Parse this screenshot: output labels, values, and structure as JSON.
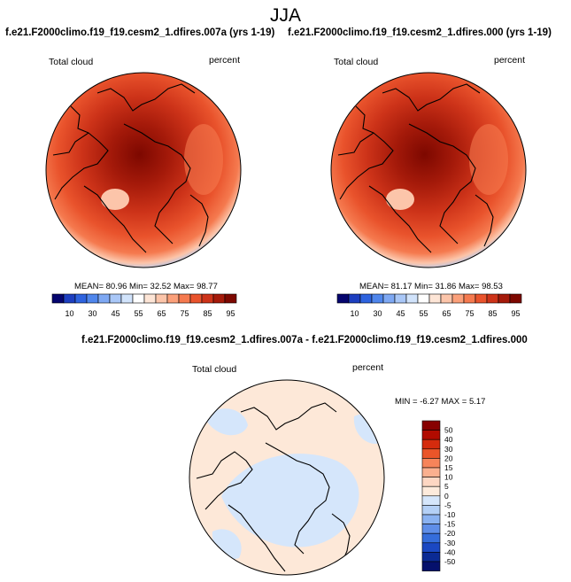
{
  "title": "JJA",
  "panels": [
    {
      "case": "f.e21.F2000climo.f19_f19.cesm2_1.dfires.007a (yrs 1-19)",
      "variable": "Total cloud",
      "units": "percent",
      "stats": "MEAN=  80.96  Min=  32.52  Max=  98.77",
      "colorbar_ticks": [
        "10",
        "30",
        "45",
        "55",
        "65",
        "75",
        "85",
        "95"
      ]
    },
    {
      "case": "f.e21.F2000climo.f19_f19.cesm2_1.dfires.000 (yrs 1-19)",
      "variable": "Total cloud",
      "units": "percent",
      "stats": "MEAN=  81.17  Min=  31.86  Max=  98.53",
      "colorbar_ticks": [
        "10",
        "30",
        "45",
        "55",
        "65",
        "75",
        "85",
        "95"
      ]
    }
  ],
  "diff": {
    "case": "f.e21.F2000climo.f19_f19.cesm2_1.dfires.007a - f.e21.F2000climo.f19_f19.cesm2_1.dfires.000",
    "variable": "Total cloud",
    "units": "percent",
    "stats": "MIN =  -6.27 MAX =   5.17",
    "colorbar_ticks": [
      "50",
      "40",
      "30",
      "20",
      "15",
      "10",
      "5",
      "0",
      "-5",
      "-10",
      "-15",
      "-20",
      "-30",
      "-40",
      "-50"
    ]
  },
  "colors": {
    "abs_palette": [
      "#05056e",
      "#1d3fc0",
      "#2e63df",
      "#4f86ec",
      "#7ea8f3",
      "#a9c7f7",
      "#d1e3fb",
      "#ffffff",
      "#fde5d6",
      "#fcc5aa",
      "#fba07a",
      "#f57a4f",
      "#e9532c",
      "#cd3319",
      "#a51a0a",
      "#7d0800"
    ],
    "diff_palette": [
      "#870000",
      "#b10b00",
      "#d52b0d",
      "#ea5529",
      "#f6845a",
      "#fab08f",
      "#fdd7c3",
      "#fdebdc",
      "#d5e6fb",
      "#b4d0f6",
      "#8ab2f1",
      "#5f8ee8",
      "#356ddb",
      "#1b48c2",
      "#0b2a94",
      "#05106c"
    ]
  }
}
